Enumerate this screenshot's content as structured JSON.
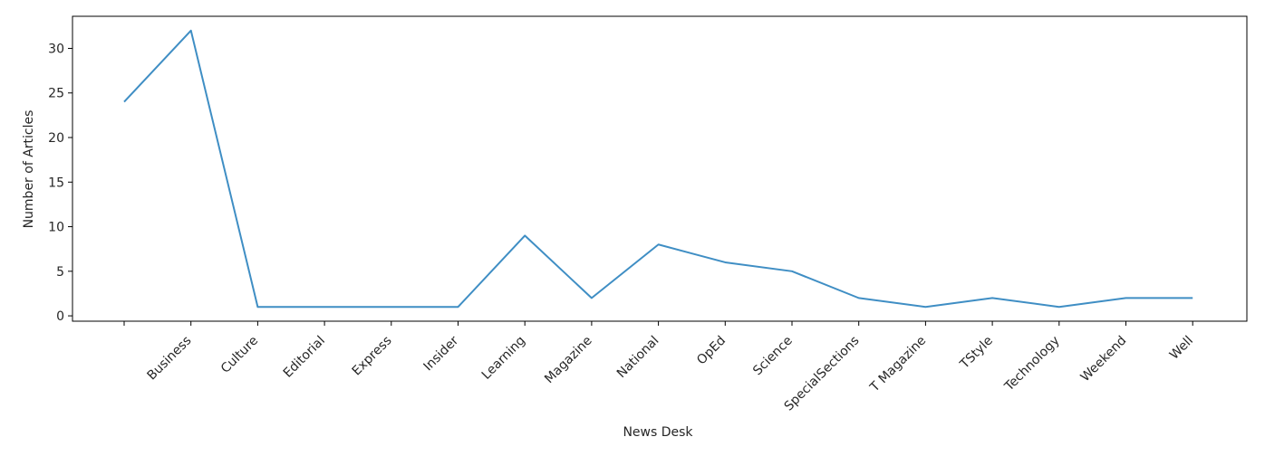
{
  "chart_data": {
    "type": "line",
    "title": "",
    "xlabel": "News Desk",
    "ylabel": "Number of Articles",
    "categories": [
      "",
      "Business",
      "Culture",
      "Editorial",
      "Express",
      "Insider",
      "Learning",
      "Magazine",
      "National",
      "OpEd",
      "Science",
      "SpecialSections",
      "T Magazine",
      "TStyle",
      "Technology",
      "Weekend",
      "Well"
    ],
    "series": [
      {
        "values": [
          24,
          32,
          1,
          1,
          1,
          1,
          9,
          2,
          8,
          6,
          5,
          2,
          1,
          2,
          1,
          2,
          2
        ],
        "color": "#3f8ec4"
      }
    ],
    "yticks": [
      0,
      5,
      10,
      15,
      20,
      25,
      30
    ],
    "ylim": [
      -0.6,
      33.6
    ],
    "grid": false,
    "legend": "none"
  }
}
